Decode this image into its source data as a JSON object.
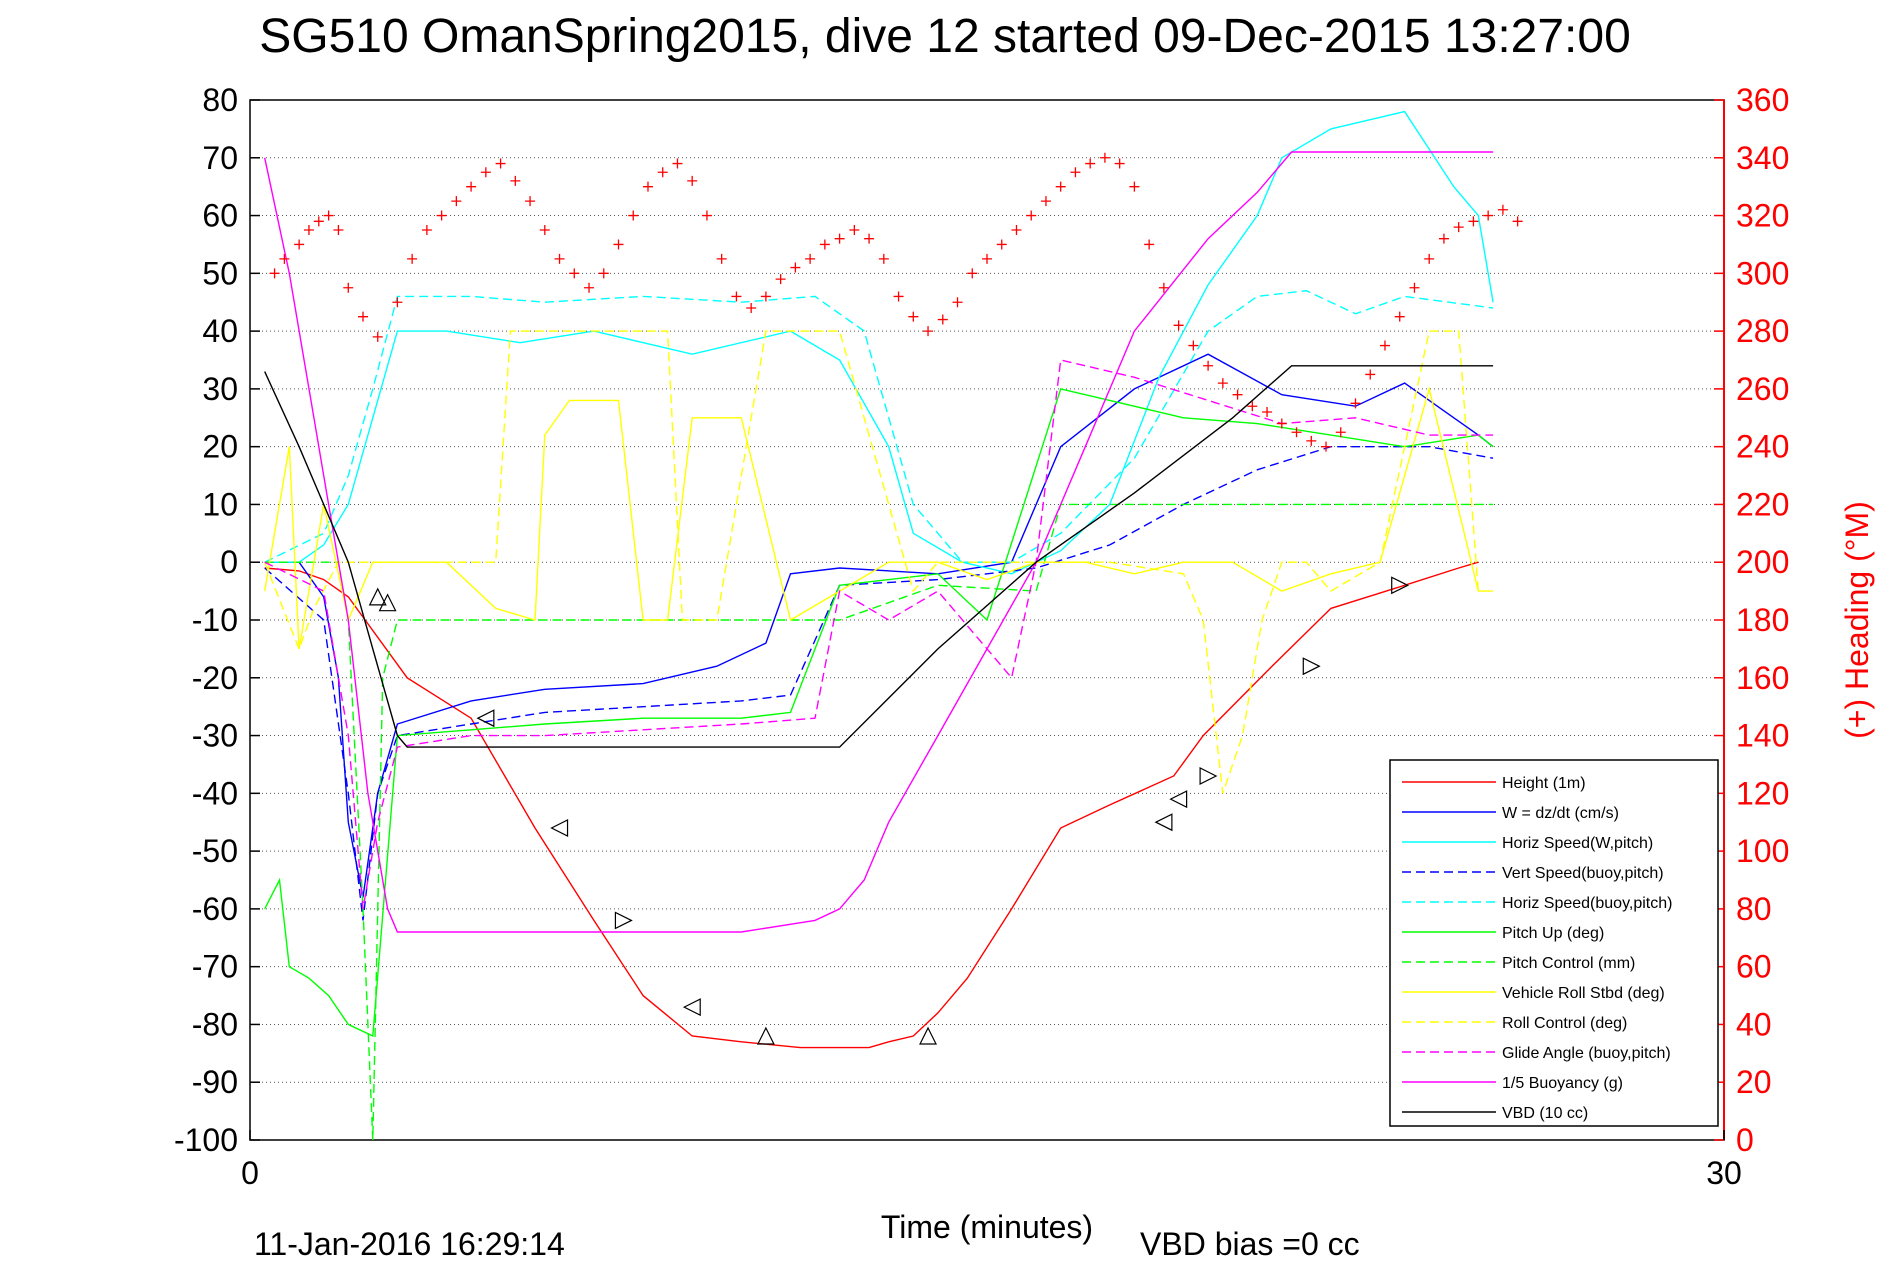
{
  "chart_data": {
    "type": "line",
    "title": "SG510 OmanSpring2015, dive 12 started 09-Dec-2015 13:27:00",
    "xlabel": "Time (minutes)",
    "ylabel_right": "(+) Heading (°M)",
    "footer_left": "11-Jan-2016 16:29:14",
    "footer_right": "VBD bias =0 cc",
    "xlim": [
      0,
      30
    ],
    "ylim": [
      -100,
      80
    ],
    "ylim_right": [
      0,
      360
    ],
    "xticks": [
      "0",
      "30"
    ],
    "yticks_left": [
      "80",
      "70",
      "60",
      "50",
      "40",
      "30",
      "20",
      "10",
      "0",
      "-10",
      "-20",
      "-30",
      "-40",
      "-50",
      "-60",
      "-70",
      "-80",
      "-90",
      "-100"
    ],
    "yticks_right": [
      "360",
      "340",
      "320",
      "300",
      "280",
      "260",
      "240",
      "220",
      "200",
      "180",
      "160",
      "140",
      "120",
      "100",
      "80",
      "60",
      "40",
      "20",
      "0"
    ],
    "grid": true,
    "legend_position": "lower-right",
    "colors": {
      "red": "#ff0000",
      "blue": "#0000ff",
      "cyan": "#00ffff",
      "green": "#00ff00",
      "yellow": "#ffff00",
      "magenta": "#ff00ff",
      "black": "#000000"
    },
    "series": [
      {
        "name": "Height (1m)",
        "color": "#ff0000",
        "dash": "solid",
        "x": [
          0.3,
          1.0,
          1.5,
          2.0,
          3.2,
          4.5,
          5.8,
          7.0,
          8.0,
          9.0,
          10.0,
          11.2,
          12.0,
          12.6,
          13.0,
          13.5,
          14.0,
          14.6,
          15.5,
          16.5,
          17.5,
          18.8,
          19.4,
          20.8,
          22.0,
          23.5,
          24.6,
          25.0
        ],
        "y": [
          -1,
          -1.5,
          -3,
          -6,
          -20,
          -27,
          -46,
          -62,
          -75,
          -82,
          -83,
          -84,
          -84,
          -84,
          -83,
          -82,
          -78,
          -72,
          -60,
          -46,
          -42,
          -37,
          -30,
          -18,
          -8,
          -4,
          -1,
          0
        ]
      },
      {
        "name": "W = dz/dt (cm/s)",
        "color": "#0000ff",
        "dash": "solid",
        "x": [
          0.3,
          1.0,
          1.5,
          1.8,
          2.0,
          2.3,
          2.6,
          3.0,
          4.5,
          6.0,
          8.0,
          9.5,
          10.5,
          11.0,
          12.0,
          14.0,
          15.5,
          16.5,
          18.0,
          19.5,
          21.0,
          22.5,
          23.5,
          24.5,
          25.0,
          25.3
        ],
        "y": [
          0,
          0,
          -6,
          -20,
          -45,
          -58,
          -40,
          -28,
          -24,
          -22,
          -21,
          -18,
          -14,
          -2,
          -1,
          -2,
          0,
          20,
          30,
          36,
          29,
          27,
          31,
          25,
          22,
          20
        ]
      },
      {
        "name": "Horiz Speed(W,pitch)",
        "color": "#00ffff",
        "dash": "solid",
        "x": [
          0.3,
          1.0,
          1.5,
          2.0,
          2.5,
          3.0,
          4.0,
          5.5,
          7.0,
          9.0,
          11.0,
          12.0,
          13.0,
          13.5,
          14.5,
          15.5,
          16.5,
          17.5,
          18.5,
          19.5,
          20.5,
          21.0,
          22.0,
          23.5,
          24.5,
          25.0,
          25.3
        ],
        "y": [
          0,
          0,
          3,
          10,
          25,
          40,
          40,
          38,
          40,
          36,
          40,
          35,
          20,
          5,
          0,
          -2,
          2,
          10,
          32,
          48,
          60,
          70,
          75,
          78,
          65,
          60,
          45
        ]
      },
      {
        "name": "Vert Speed(buoy,pitch)",
        "color": "#0000ff",
        "dash": "dash",
        "x": [
          0.3,
          1.5,
          2.0,
          2.3,
          2.6,
          3.0,
          4.5,
          6.0,
          8.0,
          10.0,
          11.0,
          12.0,
          14.0,
          16.0,
          17.5,
          19.0,
          20.5,
          22.0,
          24.0,
          25.3
        ],
        "y": [
          -1,
          -10,
          -40,
          -62,
          -40,
          -30,
          -28,
          -26,
          -25,
          -24,
          -23,
          -4,
          -3,
          -1,
          3,
          10,
          16,
          20,
          20,
          18
        ]
      },
      {
        "name": "Horiz Speed(buoy,pitch)",
        "color": "#00ffff",
        "dash": "dash",
        "x": [
          0.3,
          1.5,
          2.0,
          2.5,
          3.0,
          4.5,
          6.0,
          8.0,
          10.0,
          11.5,
          12.5,
          13.5,
          14.5,
          15.5,
          16.5,
          18.0,
          19.5,
          20.5,
          21.5,
          22.5,
          23.5,
          25.3
        ],
        "y": [
          0,
          5,
          15,
          30,
          46,
          46,
          45,
          46,
          45,
          46,
          40,
          10,
          0,
          0,
          5,
          18,
          40,
          46,
          47,
          43,
          46,
          44
        ]
      },
      {
        "name": "Pitch Up (deg)",
        "color": "#00ff00",
        "dash": "solid",
        "x": [
          0.3,
          0.6,
          0.8,
          1.2,
          1.6,
          2.0,
          2.5,
          3.0,
          4.5,
          6.0,
          8.0,
          10.0,
          11.0,
          12.0,
          13.0,
          14.0,
          15.0,
          16.5,
          17.5,
          19.0,
          20.5,
          22.0,
          23.5,
          25.0,
          25.3
        ],
        "y": [
          -60,
          -55,
          -70,
          -72,
          -75,
          -80,
          -82,
          -30,
          -29,
          -28,
          -27,
          -27,
          -26,
          -4,
          -3,
          -2,
          -10,
          30,
          28,
          25,
          24,
          22,
          20,
          22,
          20
        ]
      },
      {
        "name": "Pitch Control (mm)",
        "color": "#00ff00",
        "dash": "dash",
        "x": [
          0.3,
          1.8,
          2.0,
          2.3,
          2.5,
          2.7,
          3.0,
          5.0,
          8.0,
          11.0,
          12.0,
          14.0,
          16.0,
          16.5,
          20.0,
          23.0,
          25.3
        ],
        "y": [
          0,
          0,
          -10,
          -60,
          -100,
          -20,
          -10,
          -10,
          -10,
          -10,
          -10,
          -4,
          -5,
          10,
          10,
          10,
          10
        ]
      },
      {
        "name": "Vehicle Roll Stbd (deg)",
        "color": "#ffff00",
        "dash": "solid",
        "x": [
          0.3,
          0.8,
          1.0,
          1.5,
          2.0,
          2.5,
          3.0,
          4.0,
          5.0,
          5.8,
          6.0,
          6.5,
          7.5,
          8.0,
          8.5,
          9.0,
          10.0,
          11.0,
          12.0,
          13.0,
          14.0,
          15.0,
          16.0,
          17.0,
          18.0,
          19.0,
          20.0,
          21.0,
          22.0,
          23.0,
          24.0,
          25.0,
          25.3
        ],
        "y": [
          -5,
          20,
          -15,
          10,
          -10,
          0,
          0,
          0,
          -8,
          -10,
          22,
          28,
          28,
          -10,
          -10,
          25,
          25,
          -10,
          -5,
          0,
          0,
          -3,
          0,
          0,
          -2,
          0,
          0,
          -5,
          -2,
          0,
          30,
          -5,
          -5
        ]
      },
      {
        "name": "Roll Control (deg)",
        "color": "#ffff00",
        "dash": "dash",
        "x": [
          0.3,
          1.0,
          1.3,
          1.8,
          2.3,
          2.8,
          3.2,
          5.0,
          5.3,
          6.0,
          7.0,
          8.5,
          8.8,
          9.5,
          10.5,
          11.0,
          12.0,
          13.5,
          14.0,
          16.0,
          17.5,
          19.0,
          19.4,
          19.8,
          20.2,
          20.6,
          21.0,
          21.5,
          22.0,
          23.0,
          24.0,
          24.6,
          25.0
        ],
        "y": [
          0,
          -15,
          -8,
          0,
          0,
          0,
          0,
          0,
          40,
          40,
          40,
          40,
          -10,
          -10,
          40,
          40,
          40,
          -5,
          0,
          0,
          0,
          -2,
          -10,
          -40,
          -30,
          -10,
          0,
          0,
          -5,
          0,
          40,
          40,
          -5
        ]
      },
      {
        "name": "Glide Angle (buoy,pitch)",
        "color": "#ff00ff",
        "dash": "dash",
        "x": [
          0.3,
          1.5,
          2.0,
          2.3,
          2.6,
          3.0,
          4.5,
          6.0,
          8.0,
          10.0,
          11.5,
          12.0,
          13.0,
          14.0,
          15.5,
          16.0,
          16.5,
          18.0,
          19.5,
          21.0,
          22.5,
          24.0,
          25.3
        ],
        "y": [
          0,
          -5,
          -30,
          -60,
          -45,
          -32,
          -30,
          -30,
          -29,
          -28,
          -27,
          -5,
          -10,
          -5,
          -20,
          0,
          35,
          32,
          28,
          24,
          25,
          22,
          22
        ]
      },
      {
        "name": "1/5 Buoyancy (g)",
        "color": "#ff00ff",
        "dash": "solid",
        "x": [
          0.3,
          0.8,
          1.2,
          1.6,
          2.0,
          2.4,
          2.8,
          3.0,
          4.0,
          6.0,
          8.0,
          10.0,
          11.5,
          12.0,
          12.5,
          13.0,
          14.0,
          15.0,
          16.0,
          17.0,
          18.0,
          19.5,
          20.5,
          21.2,
          22.0,
          23.5,
          25.3
        ],
        "y": [
          70,
          50,
          30,
          10,
          -10,
          -40,
          -60,
          -64,
          -64,
          -64,
          -64,
          -64,
          -62,
          -60,
          -55,
          -45,
          -30,
          -15,
          0,
          20,
          40,
          56,
          64,
          71,
          71,
          71,
          71
        ]
      },
      {
        "name": "VBD (10 cc)",
        "color": "#000000",
        "dash": "solid",
        "x": [
          0.3,
          1.0,
          1.5,
          2.0,
          2.5,
          3.0,
          3.2,
          5.0,
          8.0,
          11.0,
          12.0,
          14.0,
          16.0,
          18.0,
          20.0,
          21.2,
          21.5,
          25.3
        ],
        "y": [
          33,
          20,
          10,
          0,
          -15,
          -30,
          -32,
          -32,
          -32,
          -32,
          -32,
          -15,
          0,
          12,
          25,
          34,
          34,
          34
        ]
      }
    ],
    "heading_series": {
      "name": "(+) Heading (°M)",
      "color": "#ff0000",
      "marker": "+",
      "x": [
        0.5,
        0.7,
        1.0,
        1.2,
        1.4,
        1.6,
        1.8,
        2.0,
        2.3,
        2.6,
        3.0,
        3.3,
        3.6,
        3.9,
        4.2,
        4.5,
        4.8,
        5.1,
        5.4,
        5.7,
        6.0,
        6.3,
        6.6,
        6.9,
        7.2,
        7.5,
        7.8,
        8.1,
        8.4,
        8.7,
        9.0,
        9.3,
        9.6,
        9.9,
        10.2,
        10.5,
        10.8,
        11.1,
        11.4,
        11.7,
        12.0,
        12.3,
        12.6,
        12.9,
        13.2,
        13.5,
        13.8,
        14.1,
        14.4,
        14.7,
        15.0,
        15.3,
        15.6,
        15.9,
        16.2,
        16.5,
        16.8,
        17.1,
        17.4,
        17.7,
        18.0,
        18.3,
        18.6,
        18.9,
        19.2,
        19.5,
        19.8,
        20.1,
        20.4,
        20.7,
        21.0,
        21.3,
        21.6,
        21.9,
        22.2,
        22.5,
        22.8,
        23.1,
        23.4,
        23.7,
        24.0,
        24.3,
        24.6,
        24.9,
        25.2,
        25.5,
        25.8
      ],
      "y": [
        300,
        305,
        310,
        315,
        318,
        320,
        315,
        295,
        285,
        278,
        290,
        305,
        315,
        320,
        325,
        330,
        335,
        338,
        332,
        325,
        315,
        305,
        300,
        295,
        300,
        310,
        320,
        330,
        335,
        338,
        332,
        320,
        305,
        292,
        288,
        292,
        298,
        302,
        305,
        310,
        312,
        315,
        312,
        305,
        292,
        285,
        280,
        284,
        290,
        300,
        305,
        310,
        315,
        320,
        325,
        330,
        335,
        338,
        340,
        338,
        330,
        310,
        295,
        282,
        275,
        268,
        262,
        258,
        254,
        252,
        248,
        245,
        242,
        240,
        245,
        255,
        265,
        275,
        285,
        295,
        305,
        312,
        316,
        318,
        320,
        322,
        318
      ]
    },
    "markers": [
      {
        "type": "triangle-up",
        "x": 2.6,
        "y": -6
      },
      {
        "type": "triangle-up",
        "x": 2.8,
        "y": -7
      },
      {
        "type": "triangle-left",
        "x": 4.8,
        "y": -27
      },
      {
        "type": "triangle-left",
        "x": 6.3,
        "y": -46
      },
      {
        "type": "triangle-right",
        "x": 7.6,
        "y": -62
      },
      {
        "type": "triangle-left",
        "x": 9.0,
        "y": -77
      },
      {
        "type": "triangle-up",
        "x": 10.5,
        "y": -82
      },
      {
        "type": "triangle-up",
        "x": 13.8,
        "y": -82
      },
      {
        "type": "triangle-left",
        "x": 18.6,
        "y": -45
      },
      {
        "type": "triangle-left",
        "x": 18.9,
        "y": -41
      },
      {
        "type": "triangle-right",
        "x": 19.5,
        "y": -37
      },
      {
        "type": "triangle-right",
        "x": 21.6,
        "y": -18
      },
      {
        "type": "triangle-right",
        "x": 23.4,
        "y": -4
      }
    ]
  }
}
